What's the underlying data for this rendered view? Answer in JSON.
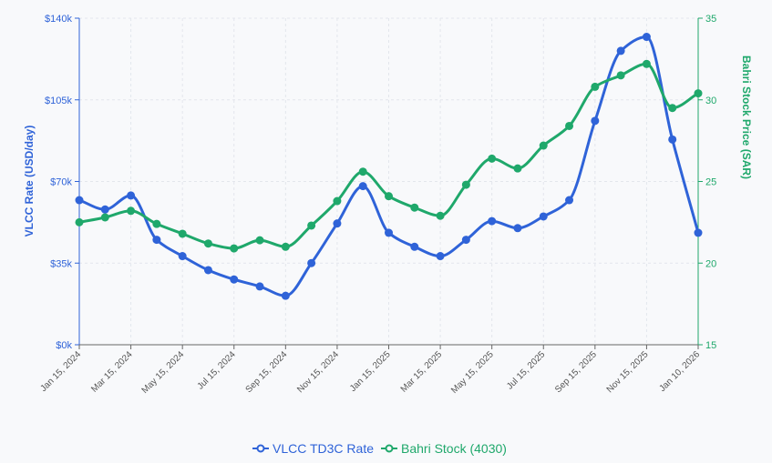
{
  "chart_data": {
    "type": "line",
    "title": "",
    "x": [
      "Jan 15, 2024",
      "Feb 15, 2024",
      "Mar 15, 2024",
      "Apr 15, 2024",
      "May 15, 2024",
      "Jun 15, 2024",
      "Jul 15, 2024",
      "Aug 15, 2024",
      "Sep 15, 2024",
      "Oct 15, 2024",
      "Nov 15, 2024",
      "Dec 15, 2024",
      "Jan 15, 2025",
      "Feb 15, 2025",
      "Mar 15, 2025",
      "Apr 15, 2025",
      "May 15, 2025",
      "Jun 15, 2025",
      "Jul 15, 2025",
      "Aug 15, 2025",
      "Sep 15, 2025",
      "Oct 15, 2025",
      "Nov 15, 2025",
      "Dec 15, 2025",
      "Jan 10, 2026"
    ],
    "xticks": [
      "Jan 15, 2024",
      "Mar 15, 2024",
      "May 15, 2024",
      "Jul 15, 2024",
      "Sep 15, 2024",
      "Nov 15, 2024",
      "Jan 15, 2025",
      "Mar 15, 2025",
      "May 15, 2025",
      "Jul 15, 2025",
      "Sep 15, 2025",
      "Nov 15, 2025",
      "Jan 10, 2026"
    ],
    "left_axis": {
      "label": "VLCC Rate (USD/day)",
      "ylim": [
        0,
        140000
      ],
      "ticks": [
        0,
        35000,
        70000,
        105000,
        140000
      ],
      "tick_labels": [
        "$0k",
        "$35k",
        "$70k",
        "$105k",
        "$140k"
      ],
      "color": "#2f63d8"
    },
    "right_axis": {
      "label": "Bahri Stock Price (SAR)",
      "ylim": [
        15,
        35
      ],
      "ticks": [
        15,
        20,
        25,
        30,
        35
      ],
      "tick_labels": [
        "15",
        "20",
        "25",
        "30",
        "35"
      ],
      "color": "#1fa86b"
    },
    "series": [
      {
        "name": "VLCC TD3C Rate",
        "axis": "left",
        "color": "#2f63d8",
        "values": [
          62000,
          58000,
          64000,
          45000,
          38000,
          32000,
          28000,
          25000,
          21000,
          35000,
          52000,
          68000,
          48000,
          42000,
          38000,
          45000,
          53000,
          50000,
          55000,
          62000,
          96000,
          126000,
          132000,
          88000,
          48000
        ]
      },
      {
        "name": "Bahri Stock (4030)",
        "axis": "right",
        "color": "#1fa86b",
        "values": [
          22.5,
          22.8,
          23.2,
          22.4,
          21.8,
          21.2,
          20.9,
          21.4,
          21.0,
          22.3,
          23.8,
          25.6,
          24.1,
          23.4,
          22.9,
          24.8,
          26.4,
          25.8,
          27.2,
          28.4,
          30.8,
          31.5,
          32.2,
          29.5,
          30.4
        ]
      }
    ],
    "legend": [
      "VLCC TD3C Rate",
      "Bahri Stock (4030)"
    ],
    "legend_position": "bottom-center",
    "grid": true
  }
}
